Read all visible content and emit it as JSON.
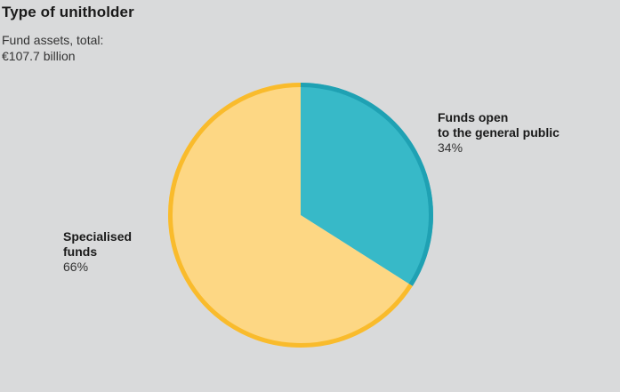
{
  "title": "Type of unitholder",
  "subtitle_line1": "Fund assets, total:",
  "subtitle_line2": "€107.7 billion",
  "chart_data": {
    "type": "pie",
    "slices": [
      {
        "label": "Funds open\nto the general public",
        "value": 34,
        "value_label": "34%",
        "color": "#37b9c8",
        "edge_color": "#1fa1b3"
      },
      {
        "label": "Specialised\nfunds",
        "value": 66,
        "value_label": "66%",
        "color": "#fdd784",
        "edge_color": "#f9bb2c"
      }
    ]
  }
}
